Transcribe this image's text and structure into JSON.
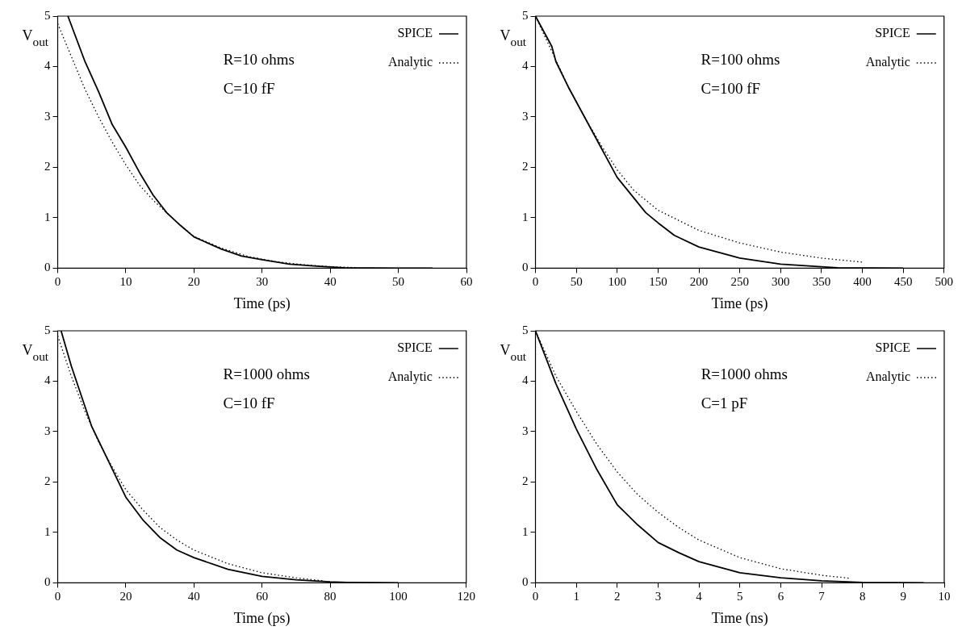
{
  "chart_data": [
    {
      "type": "line",
      "xlabel": "Time (ps)",
      "ylabel": "V$_{out}$",
      "annotations": [
        "R=10 ohms",
        "C=10 fF"
      ],
      "xlim": [
        0,
        60
      ],
      "xticks": [
        0,
        10,
        20,
        30,
        40,
        50,
        60
      ],
      "ylim": [
        0,
        5
      ],
      "yticks": [
        0,
        1,
        2,
        3,
        4,
        5
      ],
      "grid": false,
      "legend": "top right",
      "series": [
        {
          "name": "SPICE",
          "color": "#000000",
          "line_style": "solid",
          "x": [
            1.5,
            4,
            6,
            8,
            10,
            12,
            14,
            16,
            18,
            20,
            24,
            27,
            30,
            34,
            38,
            42,
            50,
            55
          ],
          "values": [
            5,
            4.1,
            3.5,
            2.85,
            2.4,
            1.9,
            1.45,
            1.1,
            0.85,
            0.62,
            0.38,
            0.24,
            0.17,
            0.08,
            0.04,
            0.01,
            0,
            0
          ]
        },
        {
          "name": "Analytic",
          "color": "#000000",
          "line_style": "dotted",
          "x": [
            0,
            2,
            4,
            6,
            8,
            10,
            12,
            14,
            16,
            18,
            20,
            24,
            28,
            32,
            36,
            40,
            44
          ],
          "values": [
            4.85,
            4.2,
            3.55,
            3.0,
            2.5,
            2.05,
            1.65,
            1.35,
            1.1,
            0.85,
            0.63,
            0.4,
            0.23,
            0.13,
            0.07,
            0.03,
            0.01
          ]
        }
      ]
    },
    {
      "type": "line",
      "xlabel": "Time (ps)",
      "ylabel": "V$_{out}$",
      "annotations": [
        "R=100 ohms",
        "C=100 fF"
      ],
      "xlim": [
        0,
        500
      ],
      "xticks": [
        0,
        50,
        100,
        150,
        200,
        250,
        300,
        350,
        400,
        450,
        500
      ],
      "ylim": [
        0,
        5
      ],
      "yticks": [
        0,
        1,
        2,
        3,
        4,
        5
      ],
      "grid": false,
      "legend": "top right",
      "series": [
        {
          "name": "SPICE",
          "color": "#000000",
          "line_style": "solid",
          "x": [
            0,
            10,
            20,
            25,
            40,
            60,
            80,
            100,
            120,
            135,
            150,
            170,
            200,
            250,
            300,
            350,
            370,
            450
          ],
          "values": [
            5,
            4.7,
            4.4,
            4.1,
            3.6,
            3.0,
            2.4,
            1.8,
            1.4,
            1.1,
            0.9,
            0.65,
            0.42,
            0.2,
            0.08,
            0.03,
            0.01,
            0
          ]
        },
        {
          "name": "Analytic",
          "color": "#000000",
          "line_style": "dotted",
          "x": [
            0,
            20,
            40,
            60,
            80,
            100,
            120,
            150,
            200,
            250,
            300,
            350,
            400
          ],
          "values": [
            5,
            4.3,
            3.6,
            3.0,
            2.45,
            1.95,
            1.55,
            1.15,
            0.75,
            0.5,
            0.32,
            0.2,
            0.12
          ]
        }
      ]
    },
    {
      "type": "line",
      "xlabel": "Time (ps)",
      "ylabel": "V$_{out}$",
      "annotations": [
        "R=1000 ohms",
        "C=10 fF"
      ],
      "xlim": [
        0,
        120
      ],
      "xticks": [
        0,
        20,
        40,
        60,
        80,
        100,
        120
      ],
      "ylim": [
        0,
        5
      ],
      "yticks": [
        0,
        1,
        2,
        3,
        4,
        5
      ],
      "grid": false,
      "legend": "top right",
      "series": [
        {
          "name": "SPICE",
          "color": "#000000",
          "line_style": "solid",
          "x": [
            1,
            4,
            7,
            10,
            15,
            20,
            25,
            30,
            35,
            40,
            50,
            60,
            70,
            80,
            85,
            100
          ],
          "values": [
            5,
            4.3,
            3.7,
            3.1,
            2.4,
            1.7,
            1.25,
            0.9,
            0.65,
            0.5,
            0.27,
            0.13,
            0.06,
            0.02,
            0.01,
            0
          ]
        },
        {
          "name": "Analytic",
          "color": "#000000",
          "line_style": "dotted",
          "x": [
            0,
            4,
            8,
            12,
            16,
            20,
            25,
            30,
            35,
            40,
            50,
            60,
            70,
            78
          ],
          "values": [
            4.9,
            4.1,
            3.4,
            2.8,
            2.3,
            1.85,
            1.45,
            1.1,
            0.85,
            0.65,
            0.38,
            0.2,
            0.1,
            0.04
          ]
        }
      ]
    },
    {
      "type": "line",
      "xlabel": "Time (ns)",
      "ylabel": "V$_{out}$",
      "annotations": [
        "R=1000 ohms",
        "C=1 pF"
      ],
      "xlim": [
        0,
        10
      ],
      "xticks": [
        0,
        1,
        2,
        3,
        4,
        5,
        6,
        7,
        8,
        9,
        10
      ],
      "ylim": [
        0,
        5
      ],
      "yticks": [
        0,
        1,
        2,
        3,
        4,
        5
      ],
      "grid": false,
      "legend": "top right",
      "series": [
        {
          "name": "SPICE",
          "color": "#000000",
          "line_style": "solid",
          "x": [
            0,
            0.5,
            1,
            1.5,
            2,
            2.5,
            3,
            3.5,
            4,
            5,
            6,
            7,
            8,
            9.5
          ],
          "values": [
            5,
            3.95,
            3.05,
            2.25,
            1.55,
            1.15,
            0.8,
            0.6,
            0.42,
            0.2,
            0.1,
            0.04,
            0.01,
            0
          ]
        },
        {
          "name": "Analytic",
          "color": "#000000",
          "line_style": "dotted",
          "x": [
            0,
            0.5,
            1,
            1.5,
            2,
            2.5,
            3,
            3.5,
            4,
            5,
            6,
            7,
            7.7
          ],
          "values": [
            5,
            4.1,
            3.4,
            2.75,
            2.2,
            1.75,
            1.4,
            1.1,
            0.85,
            0.5,
            0.28,
            0.15,
            0.09
          ]
        }
      ]
    }
  ]
}
